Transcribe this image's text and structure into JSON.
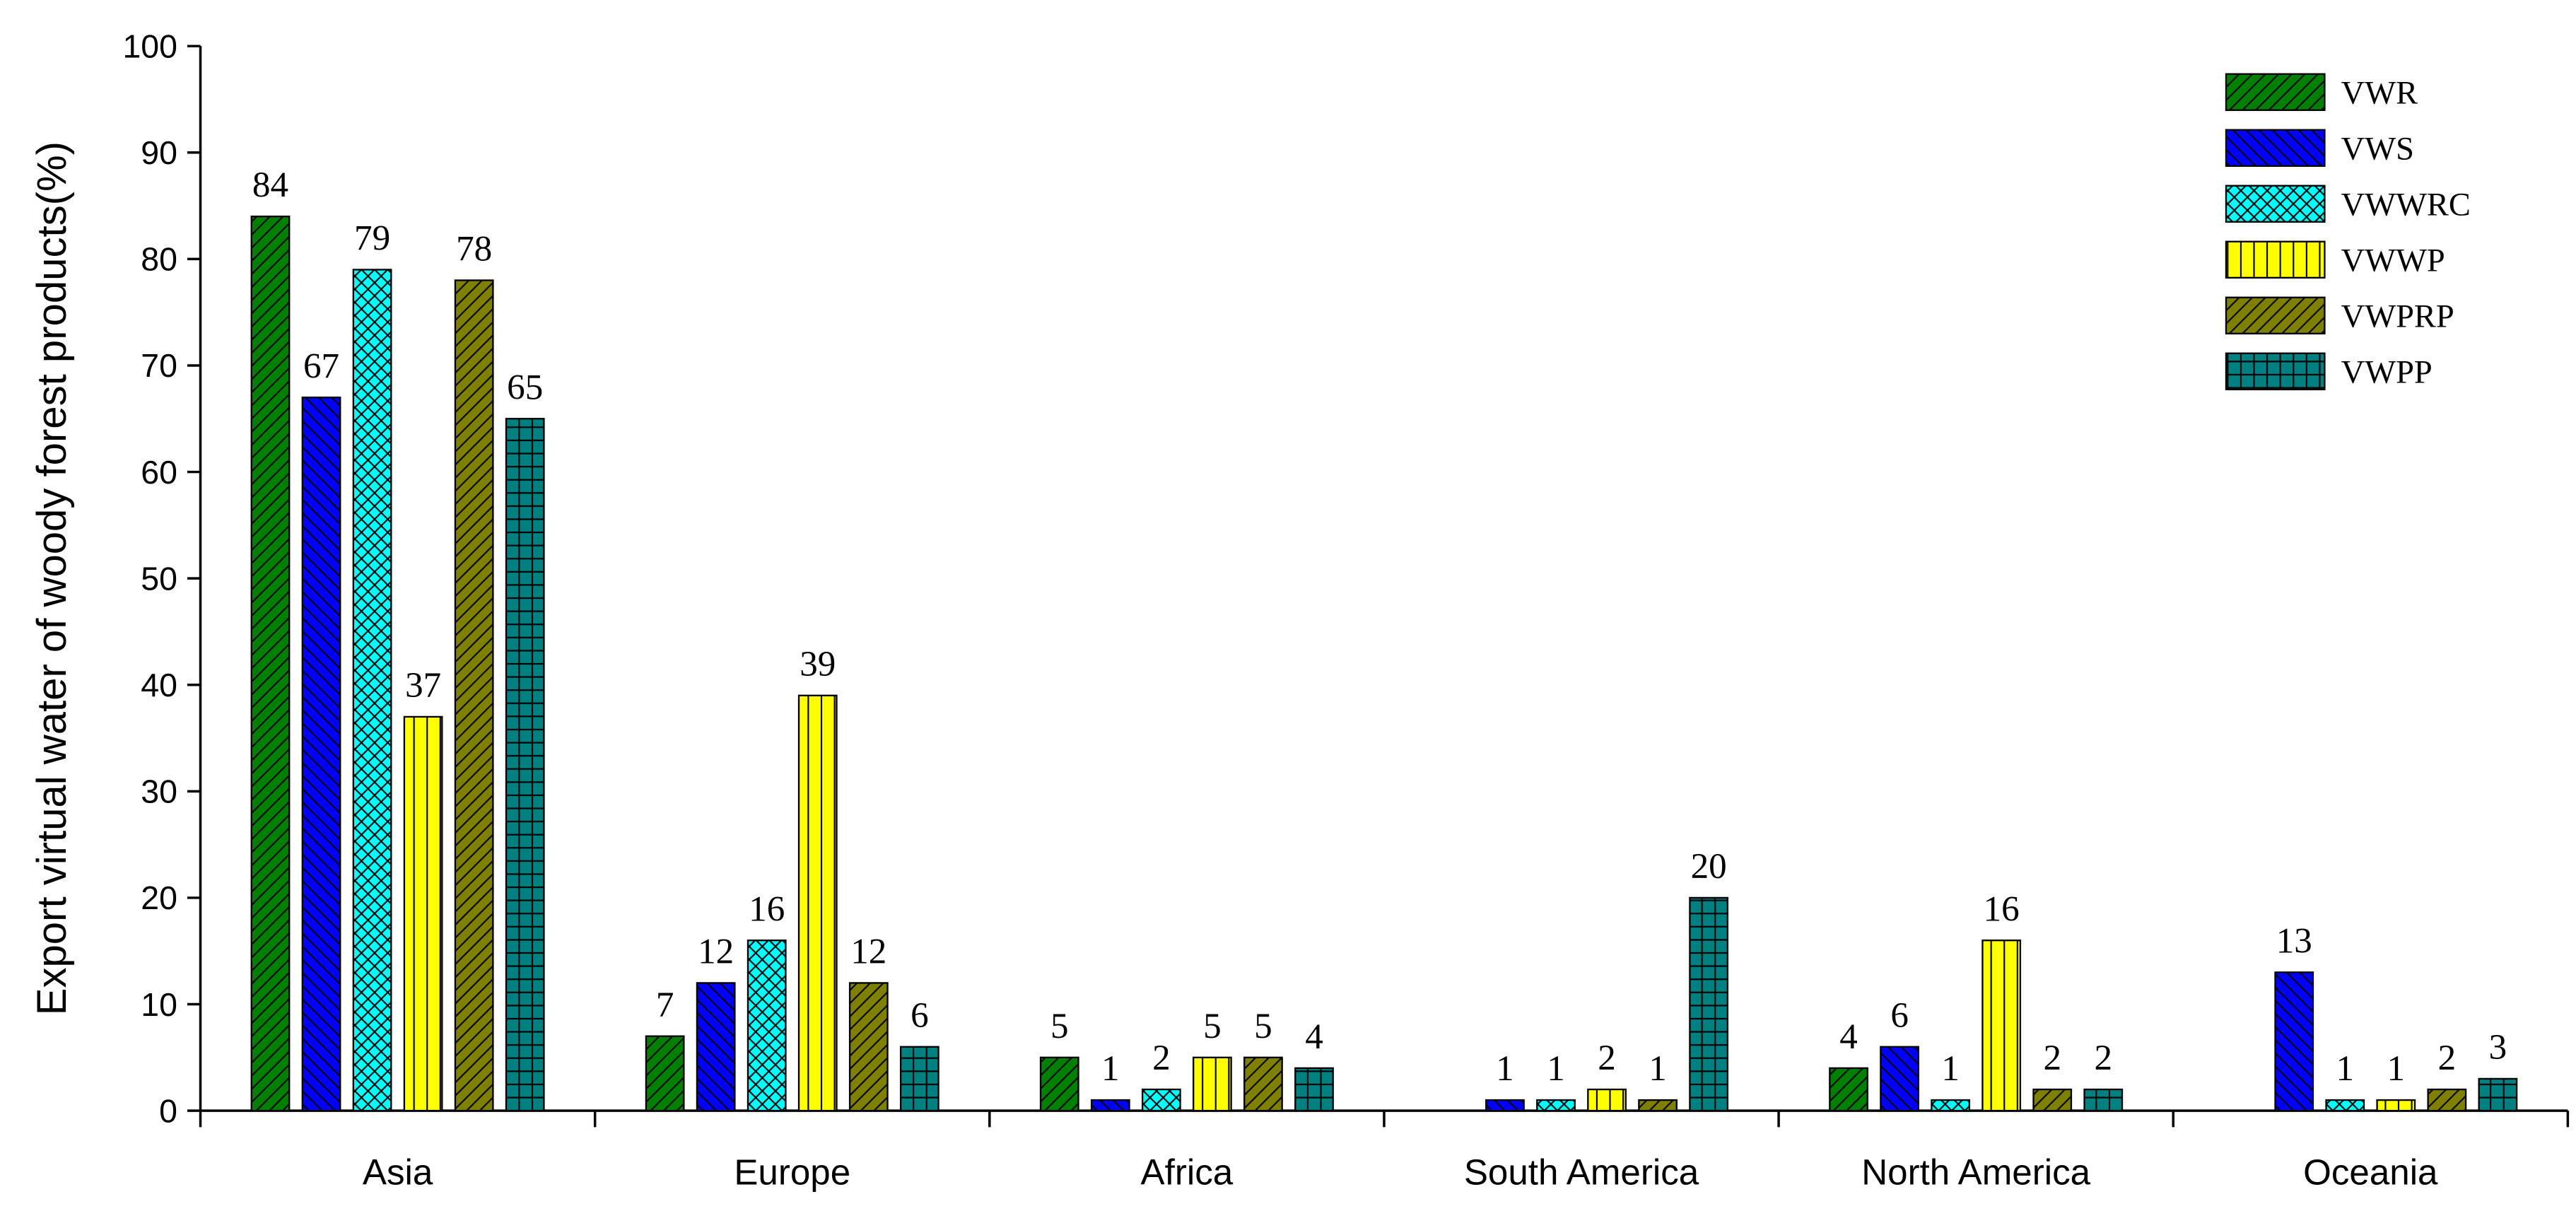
{
  "chart_data": {
    "type": "bar",
    "y_label": "Export virtual water of woody forest products(%)",
    "categories": [
      "Asia",
      "Europe",
      "Africa",
      "South America",
      "North America",
      "Oceania"
    ],
    "series": [
      {
        "name": "VWR",
        "color": "#008000",
        "pattern": "diag-up",
        "values": [
          84,
          7,
          5,
          null,
          4,
          null
        ]
      },
      {
        "name": "VWS",
        "color": "#0000ff",
        "pattern": "diag-down",
        "values": [
          67,
          12,
          1,
          1,
          6,
          13
        ]
      },
      {
        "name": "VWWRC",
        "color": "#00ffff",
        "pattern": "cross",
        "values": [
          79,
          16,
          2,
          1,
          1,
          1
        ]
      },
      {
        "name": "VWWP",
        "color": "#ffff00",
        "pattern": "vertical",
        "values": [
          37,
          39,
          5,
          2,
          16,
          1
        ]
      },
      {
        "name": "VWPRP",
        "color": "#808000",
        "pattern": "diag-up",
        "values": [
          78,
          12,
          5,
          1,
          2,
          2
        ]
      },
      {
        "name": "VWPP",
        "color": "#008080",
        "pattern": "grid",
        "values": [
          65,
          6,
          4,
          20,
          2,
          3
        ]
      }
    ],
    "ylim": [
      0,
      100
    ],
    "yticks": [
      0,
      10,
      20,
      30,
      40,
      50,
      60,
      70,
      80,
      90,
      100
    ],
    "legend": "upper-right"
  }
}
